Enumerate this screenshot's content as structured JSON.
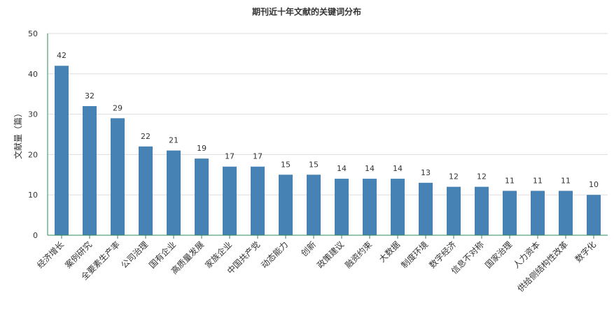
{
  "chart_data": {
    "type": "bar",
    "title": "期刊近十年文献的关键词分布",
    "xlabel": "",
    "ylabel": "文献量（篇）",
    "categories": [
      "经济增长",
      "案例研究",
      "全要素生产率",
      "公司治理",
      "国有企业",
      "高质量发展",
      "家族企业",
      "中国共产党",
      "动态能力",
      "创新",
      "政策建议",
      "融资约束",
      "大数据",
      "制度环境",
      "数字经济",
      "信息不对称",
      "国家治理",
      "人力资本",
      "供给侧结构性改革",
      "数字化"
    ],
    "values": [
      42,
      32,
      29,
      22,
      21,
      19,
      17,
      17,
      15,
      15,
      14,
      14,
      14,
      13,
      12,
      12,
      11,
      11,
      11,
      10
    ],
    "ylim": [
      0,
      50
    ],
    "yticks": [
      0,
      10,
      20,
      30,
      40,
      50
    ],
    "grid": true,
    "legend": "none",
    "colors": {
      "bar": "#4682b4",
      "grid": "#dddddd",
      "axis": "#2e8b57"
    }
  }
}
